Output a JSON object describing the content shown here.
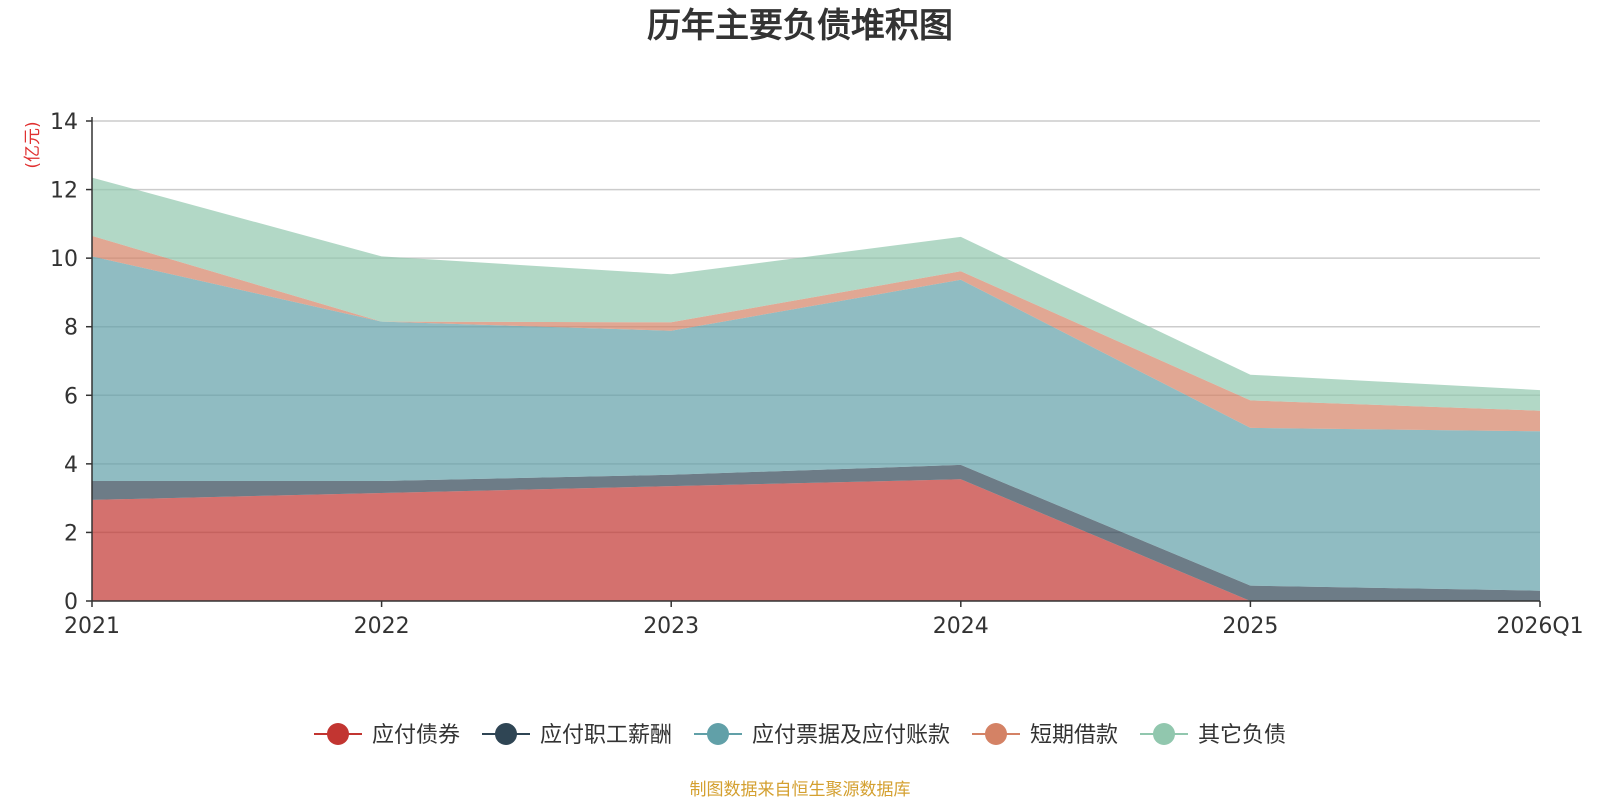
{
  "chart_data": {
    "type": "area",
    "stacked": true,
    "title": "历年主要负债堆积图",
    "ylabel": "(亿元)",
    "xlabel": "",
    "categories": [
      "2021",
      "2022",
      "2023",
      "2024",
      "2025",
      "2026Q1"
    ],
    "ylim": [
      0,
      14
    ],
    "yticks": [
      0,
      2,
      4,
      6,
      8,
      10,
      12,
      14
    ],
    "grid": true,
    "legend_position": "bottom",
    "series": [
      {
        "name": "应付债券",
        "values": [
          2.95,
          3.15,
          3.35,
          3.55,
          0.0,
          0.0
        ],
        "color": "#c23531"
      },
      {
        "name": "应付职工薪酬",
        "values": [
          0.55,
          0.35,
          0.33,
          0.42,
          0.45,
          0.3
        ],
        "color": "#2f4554"
      },
      {
        "name": "应付票据及应付账款",
        "values": [
          6.55,
          4.65,
          4.2,
          5.4,
          4.6,
          4.65
        ],
        "color": "#61a0a8"
      },
      {
        "name": "短期借款",
        "values": [
          0.6,
          0.0,
          0.25,
          0.25,
          0.8,
          0.6
        ],
        "color": "#d48265"
      },
      {
        "name": "其它负债",
        "values": [
          1.7,
          1.9,
          1.4,
          1.0,
          0.75,
          0.6
        ],
        "color": "#91c7ae"
      }
    ],
    "source": "制图数据来自恒生聚源数据库",
    "unit_color": "#e03030",
    "source_color": "#d4a030"
  }
}
